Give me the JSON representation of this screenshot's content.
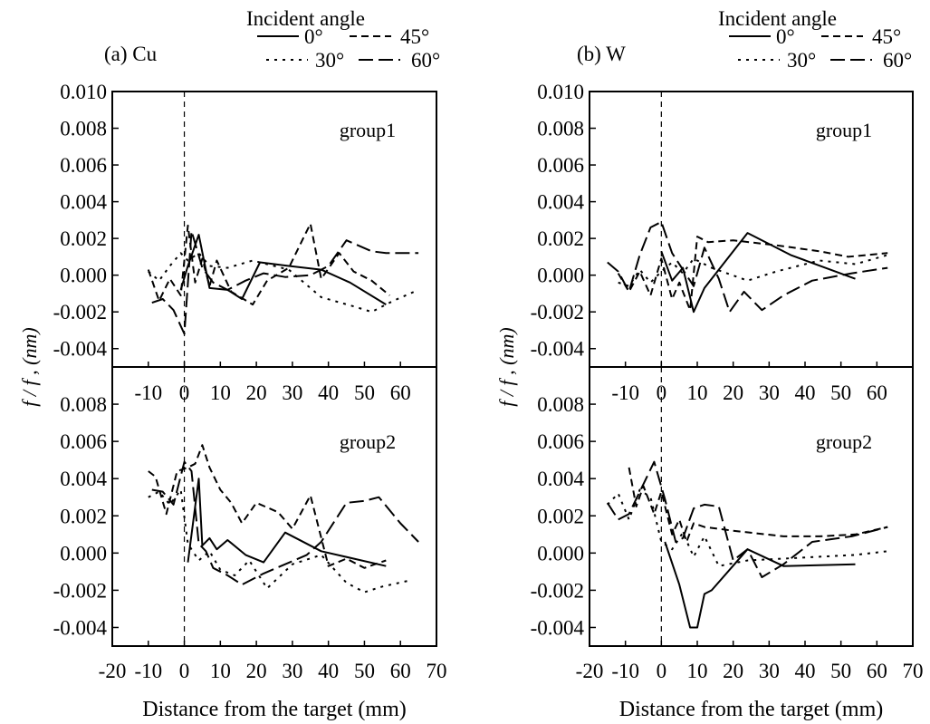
{
  "colors": {
    "line": "#000000",
    "background": "#ffffff"
  },
  "chart_data": [
    {
      "type": "line",
      "panel_label": "(a) Cu",
      "legend_title": "Incident angle",
      "legend_entries": [
        "0°",
        "45°",
        "30°",
        "60°"
      ],
      "ylabel": "f / f , (nm)",
      "xlabel": "Distance from the target  (mm)",
      "subplots": [
        {
          "group": "group1",
          "ylim": [
            -0.005,
            0.01
          ],
          "yticks": [
            -0.004,
            -0.002,
            0.0,
            0.002,
            0.004,
            0.006,
            0.008,
            0.01
          ],
          "ytick_labels": [
            "-0.004",
            "-0.002",
            "0.000",
            "0.002",
            "0.004",
            "0.006",
            "0.008",
            "0.010"
          ],
          "xlim": [
            -20,
            70
          ],
          "xticks": [
            -10,
            0,
            10,
            20,
            30,
            40,
            50,
            60
          ],
          "xtick_labels": [
            "-10",
            "0",
            "10",
            "20",
            "30",
            "40",
            "50",
            "60"
          ],
          "series": [
            {
              "name": "0°",
              "style": "solid",
              "x": [
                -1,
                1,
                4,
                7,
                12,
                16,
                21,
                29,
                38,
                46,
                56
              ],
              "y": [
                -0.0008,
                0.0005,
                0.0022,
                -0.0007,
                -0.0008,
                -0.0013,
                0.0007,
                0.0005,
                0.0003,
                -0.0004,
                -0.0016
              ]
            },
            {
              "name": "30°",
              "style": "dotted",
              "x": [
                -10,
                -7,
                -4,
                -1,
                1,
                4,
                7,
                12,
                19,
                29,
                38,
                47,
                52,
                58,
                65
              ],
              "y": [
                0.0002,
                -0.0003,
                0.0005,
                0.0012,
                0.0008,
                0.0012,
                0.0005,
                0.0004,
                0.0008,
                0.0003,
                -0.0012,
                -0.0017,
                -0.002,
                -0.0014,
                -0.0008
              ]
            },
            {
              "name": "45°",
              "style": "dashed",
              "x": [
                -10,
                -7,
                -4,
                -1,
                1,
                3,
                5,
                7,
                9,
                13,
                19,
                23,
                29,
                32,
                35,
                38,
                43,
                47,
                52,
                57
              ],
              "y": [
                0.0003,
                -0.0014,
                -0.0002,
                -0.0011,
                0.0027,
                -0.0004,
                0.0009,
                -0.0006,
                0.0008,
                -0.0009,
                -0.0016,
                -0.0003,
                0.0004,
                0.0016,
                0.0028,
                -0.0002,
                0.0012,
                0.0002,
                -0.0003,
                -0.0011
              ]
            },
            {
              "name": "60°",
              "style": "longdash",
              "x": [
                -9,
                -6,
                -3,
                0,
                2,
                5,
                8,
                12,
                17,
                22,
                28,
                35,
                40,
                45,
                52,
                56,
                65
              ],
              "y": [
                -0.0015,
                -0.0013,
                -0.0019,
                -0.0032,
                0.0024,
                0.0004,
                -0.0004,
                -0.0008,
                -0.0003,
                0.0001,
                -0.0001,
                0.0,
                0.0005,
                0.0019,
                0.0013,
                0.0012,
                0.0012
              ]
            }
          ]
        },
        {
          "group": "group2",
          "ylim": [
            -0.005,
            0.01
          ],
          "yticks": [
            -0.004,
            -0.002,
            0.0,
            0.002,
            0.004,
            0.006,
            0.008
          ],
          "ytick_labels": [
            "-0.004",
            "-0.002",
            "0.000",
            "0.002",
            "0.004",
            "0.006",
            "0.008"
          ],
          "xlim": [
            -20,
            70
          ],
          "xticks": [
            -20,
            -10,
            0,
            10,
            20,
            30,
            40,
            50,
            60,
            70
          ],
          "xtick_labels": [
            "-20",
            "-10",
            "0",
            "10",
            "20",
            "30",
            "40",
            "50",
            "60",
            "70"
          ],
          "series": [
            {
              "name": "0°",
              "style": "solid",
              "x": [
                1,
                4,
                5,
                7,
                9,
                12,
                17,
                22,
                28,
                38,
                47,
                56
              ],
              "y": [
                -0.0005,
                0.004,
                0.0004,
                0.0008,
                0.0002,
                0.0007,
                -0.0001,
                -0.0005,
                0.0011,
                0.0001,
                -0.0003,
                -0.0007
              ]
            },
            {
              "name": "30°",
              "style": "dotted",
              "x": [
                -10,
                -7,
                -4,
                -1,
                1,
                4,
                7,
                10,
                14,
                18,
                23,
                30,
                38,
                45,
                50,
                55,
                62
              ],
              "y": [
                0.003,
                0.0033,
                0.0026,
                0.0034,
                0.0005,
                -0.0004,
                0.0001,
                -0.0009,
                -0.0012,
                -0.0004,
                -0.0019,
                -0.0006,
                -0.0001,
                -0.0016,
                -0.0021,
                -0.0018,
                -0.0015
              ]
            },
            {
              "name": "45°",
              "style": "dashed",
              "x": [
                -10,
                -8,
                -5,
                -2,
                1,
                3,
                5,
                7,
                10,
                13,
                16,
                20,
                26,
                30,
                35,
                40,
                45,
                50,
                56
              ],
              "y": [
                0.0044,
                0.0041,
                0.0021,
                0.0044,
                0.0046,
                0.0048,
                0.0058,
                0.0046,
                0.0034,
                0.0027,
                0.0016,
                0.0027,
                0.0022,
                0.0013,
                0.0031,
                -0.0007,
                -0.0003,
                -0.0008,
                -0.0004
              ]
            },
            {
              "name": "60°",
              "style": "longdash",
              "x": [
                -9,
                -6,
                -3,
                0,
                2,
                4,
                6,
                8,
                12,
                16,
                22,
                28,
                34,
                38,
                45,
                50,
                54,
                60,
                65
              ],
              "y": [
                0.0034,
                0.0033,
                0.0026,
                0.0049,
                0.0044,
                0.0005,
                0.0001,
                -0.0008,
                -0.0012,
                -0.0017,
                -0.0011,
                -0.0006,
                -0.0001,
                0.0006,
                0.0027,
                0.0028,
                0.003,
                0.0016,
                0.0006
              ]
            }
          ]
        }
      ]
    },
    {
      "type": "line",
      "panel_label": "(b) W",
      "legend_title": "Incident angle",
      "legend_entries": [
        "0°",
        "45°",
        "30°",
        "60°"
      ],
      "ylabel": "f / f , (nm)",
      "xlabel": "Distance from the target  (mm)",
      "subplots": [
        {
          "group": "group1",
          "ylim": [
            -0.005,
            0.01
          ],
          "yticks": [
            -0.004,
            -0.002,
            0.0,
            0.002,
            0.004,
            0.006,
            0.008,
            0.01
          ],
          "ytick_labels": [
            "-0.004",
            "-0.002",
            "0.000",
            "0.002",
            "0.004",
            "0.006",
            "0.008",
            "0.010"
          ],
          "xlim": [
            -20,
            70
          ],
          "xticks": [
            -10,
            0,
            10,
            20,
            30,
            40,
            50,
            60
          ],
          "xtick_labels": [
            "-10",
            "0",
            "10",
            "20",
            "30",
            "40",
            "50",
            "60"
          ],
          "series": [
            {
              "name": "0°",
              "style": "solid",
              "x": [
                0,
                3,
                6,
                9,
                12,
                24,
                36,
                54
              ],
              "y": [
                0.0013,
                -0.0003,
                0.0004,
                -0.002,
                -0.0007,
                0.0023,
                0.0011,
                -0.0002
              ]
            },
            {
              "name": "30°",
              "style": "dotted",
              "x": [
                -12,
                -9,
                -6,
                -3,
                0,
                3,
                6,
                9,
                14,
                24,
                32,
                44,
                54,
                63
              ],
              "y": [
                -0.0004,
                -0.0006,
                0.0003,
                -0.0004,
                0.0002,
                0.0007,
                0.0001,
                0.0009,
                0.0004,
                -0.0003,
                0.0002,
                0.0008,
                0.0006,
                0.0011
              ]
            },
            {
              "name": "45°",
              "style": "dashed",
              "x": [
                -12,
                -9,
                -6,
                -3,
                0,
                3,
                5,
                8,
                10,
                13,
                20,
                33,
                44,
                52,
                63
              ],
              "y": [
                0.0001,
                -0.0009,
                0.0002,
                -0.0011,
                0.0009,
                -0.0013,
                -0.0004,
                -0.0019,
                0.0021,
                0.0018,
                0.0019,
                0.0016,
                0.0013,
                0.001,
                0.0012
              ]
            },
            {
              "name": "60°",
              "style": "longdash",
              "x": [
                -15,
                -12,
                -9,
                -6,
                -3,
                0,
                3,
                6,
                9,
                12,
                16,
                19,
                23,
                28,
                34,
                42,
                53,
                63
              ],
              "y": [
                0.0007,
                0.0002,
                -0.0009,
                0.0011,
                0.0026,
                0.0029,
                0.0012,
                0.0003,
                -0.0006,
                0.0015,
                -0.0002,
                -0.002,
                -0.0009,
                -0.0019,
                -0.0011,
                -0.0003,
                0.0001,
                0.0004
              ]
            }
          ]
        },
        {
          "group": "group2",
          "ylim": [
            -0.005,
            0.01
          ],
          "yticks": [
            -0.004,
            -0.002,
            0.0,
            0.002,
            0.004,
            0.006,
            0.008
          ],
          "ytick_labels": [
            "-0.004",
            "-0.002",
            "0.000",
            "0.002",
            "0.004",
            "0.006",
            "0.008"
          ],
          "xlim": [
            -20,
            70
          ],
          "xticks": [
            -20,
            -10,
            0,
            10,
            20,
            30,
            40,
            50,
            60,
            70
          ],
          "xtick_labels": [
            "-20",
            "-10",
            "0",
            "10",
            "20",
            "30",
            "40",
            "50",
            "60",
            "70"
          ],
          "series": [
            {
              "name": "0°",
              "style": "solid",
              "x": [
                1,
                5,
                8,
                10,
                12,
                14,
                24,
                34,
                54
              ],
              "y": [
                0.0006,
                -0.0017,
                -0.004,
                -0.004,
                -0.0022,
                -0.002,
                0.0002,
                -0.0007,
                -0.0006
              ]
            },
            {
              "name": "30°",
              "style": "dotted",
              "x": [
                -15,
                -12,
                -9,
                -6,
                -3,
                0,
                3,
                6,
                9,
                12,
                16,
                24,
                34,
                44,
                54,
                63
              ],
              "y": [
                0.0026,
                0.0032,
                0.0018,
                0.0034,
                0.003,
                0.0006,
                0.0002,
                0.0011,
                -0.0002,
                0.0009,
                -0.0007,
                -0.0004,
                -0.0003,
                -0.0002,
                -0.0001,
                0.0001
              ]
            },
            {
              "name": "45°",
              "style": "dashed",
              "x": [
                -9,
                -7,
                -5,
                -2,
                0,
                3,
                5,
                7,
                9,
                12,
                20,
                34,
                44,
                54,
                63
              ],
              "y": [
                0.0046,
                0.0025,
                0.0036,
                0.0021,
                0.0033,
                0.001,
                0.0018,
                0.0006,
                0.0016,
                0.0014,
                0.0012,
                0.0009,
                0.0009,
                0.001,
                0.0014
              ]
            },
            {
              "name": "60°",
              "style": "longdash",
              "x": [
                -15,
                -12,
                -9,
                -6,
                -2,
                1,
                4,
                6,
                9,
                12,
                16,
                20,
                24,
                28,
                34,
                42,
                53,
                63
              ],
              "y": [
                0.0027,
                0.0018,
                0.0021,
                0.0033,
                0.0049,
                0.0029,
                0.0006,
                0.0008,
                0.0024,
                0.0026,
                0.0025,
                -0.0004,
                0.0002,
                -0.0013,
                -0.0006,
                0.0006,
                0.0009,
                0.0014
              ]
            }
          ]
        }
      ]
    }
  ]
}
